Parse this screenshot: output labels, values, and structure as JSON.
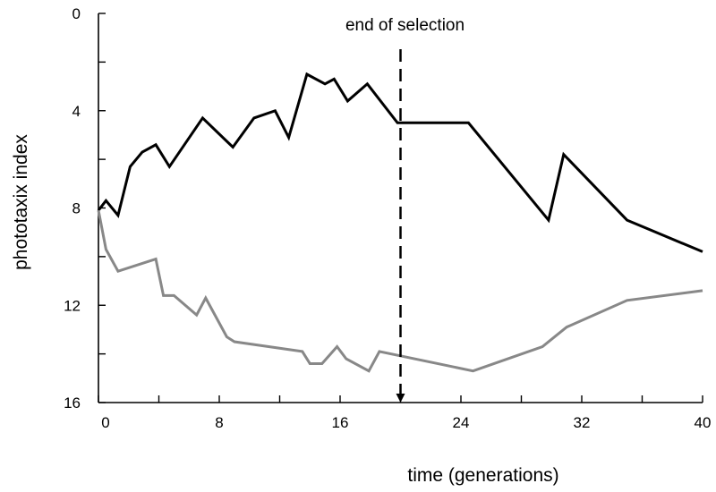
{
  "chart_data": {
    "type": "line",
    "title": "",
    "xlabel": "time (generations)",
    "ylabel": "phototaxix index",
    "xlim": [
      0,
      40
    ],
    "ylim": [
      0,
      16
    ],
    "y_inverted": true,
    "grid": false,
    "x_ticks": [
      "0",
      "8",
      "16",
      "24",
      "32",
      "40"
    ],
    "y_ticks": [
      "0",
      "4",
      "8",
      "12",
      "16"
    ],
    "colors": {
      "series_1": "#000000",
      "series_2": "#888888",
      "marker": "#000000"
    },
    "annotation": {
      "text": "end of selection",
      "x": 20
    },
    "series": [
      {
        "x": [
          0,
          0.5,
          1.3,
          2.1,
          2.9,
          3.8,
          4.7,
          6.9,
          8.9,
          10.3,
          11.7,
          12.6,
          13.8,
          15,
          15.6,
          16.5,
          17.8,
          19.8,
          24.5,
          29.8,
          30.8,
          35,
          40
        ],
        "y": [
          8.1,
          7.7,
          8.3,
          6.3,
          5.7,
          5.4,
          6.3,
          4.3,
          5.5,
          4.3,
          4.0,
          5.1,
          2.5,
          2.9,
          2.7,
          3.6,
          2.9,
          4.5,
          4.5,
          8.5,
          5.8,
          8.5,
          9.8
        ]
      },
      {
        "x": [
          0,
          0.5,
          1.3,
          3.8,
          4.3,
          5.0,
          6.5,
          7.1,
          8.5,
          9.0,
          13.5,
          14.0,
          14.8,
          15.8,
          16.4,
          17.9,
          18.6,
          24.8,
          29.4,
          31.0,
          35.0,
          40
        ],
        "y": [
          8.1,
          9.7,
          10.6,
          10.1,
          11.6,
          11.6,
          12.4,
          11.7,
          13.3,
          13.5,
          13.9,
          14.4,
          14.4,
          13.7,
          14.2,
          14.7,
          13.9,
          14.7,
          13.7,
          12.9,
          11.8,
          11.4
        ]
      }
    ]
  }
}
